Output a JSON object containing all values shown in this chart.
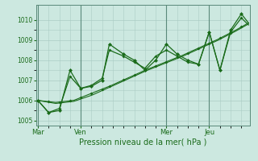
{
  "title": "Pression niveau de la mer( hPa )",
  "background_color": "#cce8e0",
  "grid_color": "#aaccc4",
  "line_color": "#1a6b1a",
  "spine_color": "#5a8a7a",
  "ylim": [
    1004.75,
    1010.75
  ],
  "yticks": [
    1005,
    1006,
    1007,
    1008,
    1009,
    1010
  ],
  "day_labels": [
    "Mar",
    "Ven",
    "Mer",
    "Jeu"
  ],
  "day_positions": [
    0,
    12,
    36,
    48
  ],
  "xlim": [
    -0.5,
    59.5
  ],
  "smooth_line1": {
    "x": [
      0,
      5,
      10,
      15,
      20,
      25,
      30,
      35,
      40,
      45,
      50,
      55,
      59
    ],
    "y": [
      1006.0,
      1005.9,
      1006.0,
      1006.35,
      1006.7,
      1007.1,
      1007.5,
      1007.85,
      1008.2,
      1008.6,
      1009.0,
      1009.45,
      1009.85
    ]
  },
  "smooth_line2": {
    "x": [
      0,
      5,
      10,
      15,
      20,
      25,
      30,
      35,
      40,
      45,
      50,
      55,
      59
    ],
    "y": [
      1006.0,
      1005.85,
      1005.95,
      1006.25,
      1006.65,
      1007.05,
      1007.45,
      1007.8,
      1008.15,
      1008.55,
      1008.95,
      1009.4,
      1009.8
    ]
  },
  "volatile_line1_x": [
    0,
    3,
    6,
    9,
    12,
    15,
    18,
    20,
    24,
    27,
    30,
    33,
    36,
    39,
    42,
    45,
    48,
    51,
    54,
    57,
    59
  ],
  "volatile_line1_y": [
    1006.0,
    1005.4,
    1005.5,
    1007.5,
    1006.6,
    1006.7,
    1007.0,
    1008.8,
    1008.3,
    1008.0,
    1007.5,
    1008.0,
    1008.8,
    1008.3,
    1008.0,
    1007.8,
    1009.4,
    1007.5,
    1009.5,
    1010.3,
    1009.85
  ],
  "volatile_line2_x": [
    0,
    3,
    6,
    9,
    12,
    15,
    18,
    20,
    24,
    27,
    30,
    33,
    36,
    39,
    42,
    45,
    48,
    51,
    54,
    57,
    59
  ],
  "volatile_line2_y": [
    1006.0,
    1005.4,
    1005.6,
    1007.2,
    1006.6,
    1006.75,
    1007.1,
    1008.5,
    1008.2,
    1007.9,
    1007.6,
    1008.2,
    1008.5,
    1008.2,
    1007.9,
    1007.8,
    1009.4,
    1007.5,
    1009.4,
    1010.1,
    1009.75
  ],
  "marker_x": [
    0,
    3,
    6,
    9,
    12,
    15,
    18,
    20,
    24,
    27,
    30,
    33,
    36,
    39,
    42,
    45,
    48,
    51,
    54,
    57
  ]
}
